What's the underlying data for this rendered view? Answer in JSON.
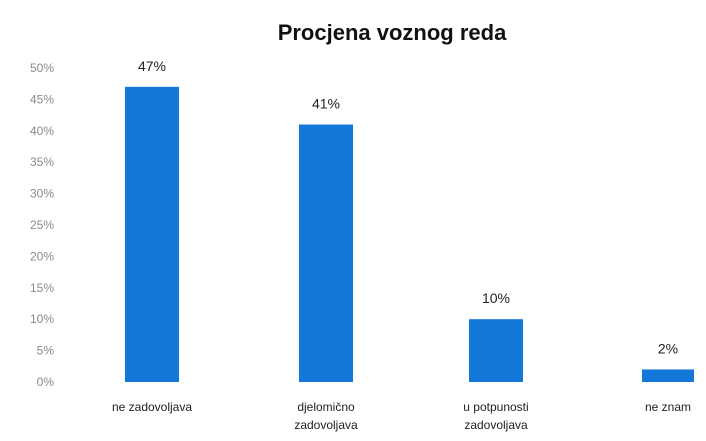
{
  "chart_data": {
    "type": "bar",
    "title": "Procjena voznog reda",
    "xlabel": "",
    "ylabel": "",
    "categories": [
      [
        "ne zadovoljava"
      ],
      [
        "djelomično",
        "zadovoljava"
      ],
      [
        "u potpunosti",
        "zadovoljava"
      ],
      [
        "ne znam"
      ]
    ],
    "values": [
      47,
      41,
      10,
      2
    ],
    "data_labels": [
      "47%",
      "41%",
      "10%",
      "2%"
    ],
    "ylim": [
      0,
      50
    ],
    "yticks": [
      0,
      5,
      10,
      15,
      20,
      25,
      30,
      35,
      40,
      45,
      50
    ],
    "ytick_labels": [
      "0%",
      "5%",
      "10%",
      "15%",
      "20%",
      "25%",
      "30%",
      "35%",
      "40%",
      "45%",
      "50%"
    ],
    "grid": false,
    "legend": "none",
    "colors": {
      "bar": "#1478d8"
    }
  }
}
